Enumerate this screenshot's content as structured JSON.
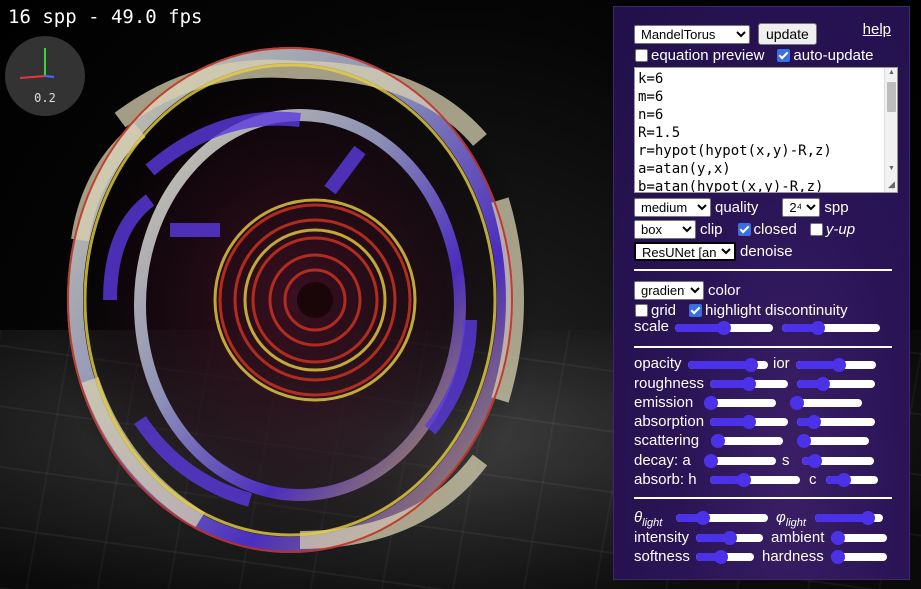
{
  "overlay": {
    "fps_text": "16 spp - 49.0 fps",
    "axis_scale": "0.2"
  },
  "panel": {
    "preset": {
      "selected": "MandelTorus"
    },
    "update_label": "update",
    "help_label": "help",
    "equation_preview": {
      "label": "equation preview",
      "checked": false
    },
    "auto_update": {
      "label": "auto-update",
      "checked": true
    },
    "equation_lines": [
      "k=6",
      "m=6",
      "n=6",
      "R=1.5",
      "r=hypot(hypot(x,y)-R,z)",
      "a=atan(y,x)",
      "b=atan(hypot(x,y)-R,z)"
    ],
    "quality": {
      "selected": "medium",
      "label": "quality"
    },
    "spp": {
      "selected": "2⁴",
      "label": "spp"
    },
    "clip": {
      "selected": "box",
      "label": "clip"
    },
    "closed": {
      "label": "closed",
      "checked": true
    },
    "y_up": {
      "label": "y-up",
      "checked": false
    },
    "denoise": {
      "selected": "ResUNet [an]",
      "label": "denoise"
    },
    "color": {
      "selected": "gradient",
      "label": "color"
    },
    "grid": {
      "label": "grid",
      "checked": false
    },
    "highlight": {
      "label": "highlight discontinuity",
      "checked": true
    },
    "scale_label": "scale",
    "scale_values": [
      0.5,
      0.35
    ],
    "material": {
      "opacity_label": "opacity",
      "opacity": 0.85,
      "ior_label": "ior",
      "ior": 0.55,
      "roughness_label": "roughness",
      "roughness": 0.5,
      "roughness2": 0.3,
      "emission_label": "emission",
      "emission": 0.0,
      "emission2": 0.0,
      "absorption_label": "absorption",
      "absorption": 0.5,
      "absorption2": 0.15,
      "scattering_label": "scattering",
      "scattering": 0.0,
      "scattering2": 0.0,
      "decay_label": "decay: a",
      "decay_a": 0.0,
      "decay_s_label": "s",
      "decay_s": 0.1,
      "absorb_label": "absorb: h",
      "absorb_h": 0.35,
      "absorb_c_label": "c",
      "absorb_c": 0.3
    },
    "light": {
      "theta_sym": "θ",
      "theta_sub": "light",
      "theta": 0.25,
      "phi_sym": "φ",
      "phi_sub": "light",
      "phi": 0.85,
      "intensity_label": "intensity",
      "intensity": 0.5,
      "ambient_label": "ambient",
      "ambient": 0.0,
      "softness_label": "softness",
      "softness": 0.4,
      "hardness_label": "hardness",
      "hardness": 0.0
    }
  },
  "colors": {
    "accent": "#4b32e8",
    "panel_bg": "#25124e",
    "checkbox_on": "#3b6fe0"
  }
}
